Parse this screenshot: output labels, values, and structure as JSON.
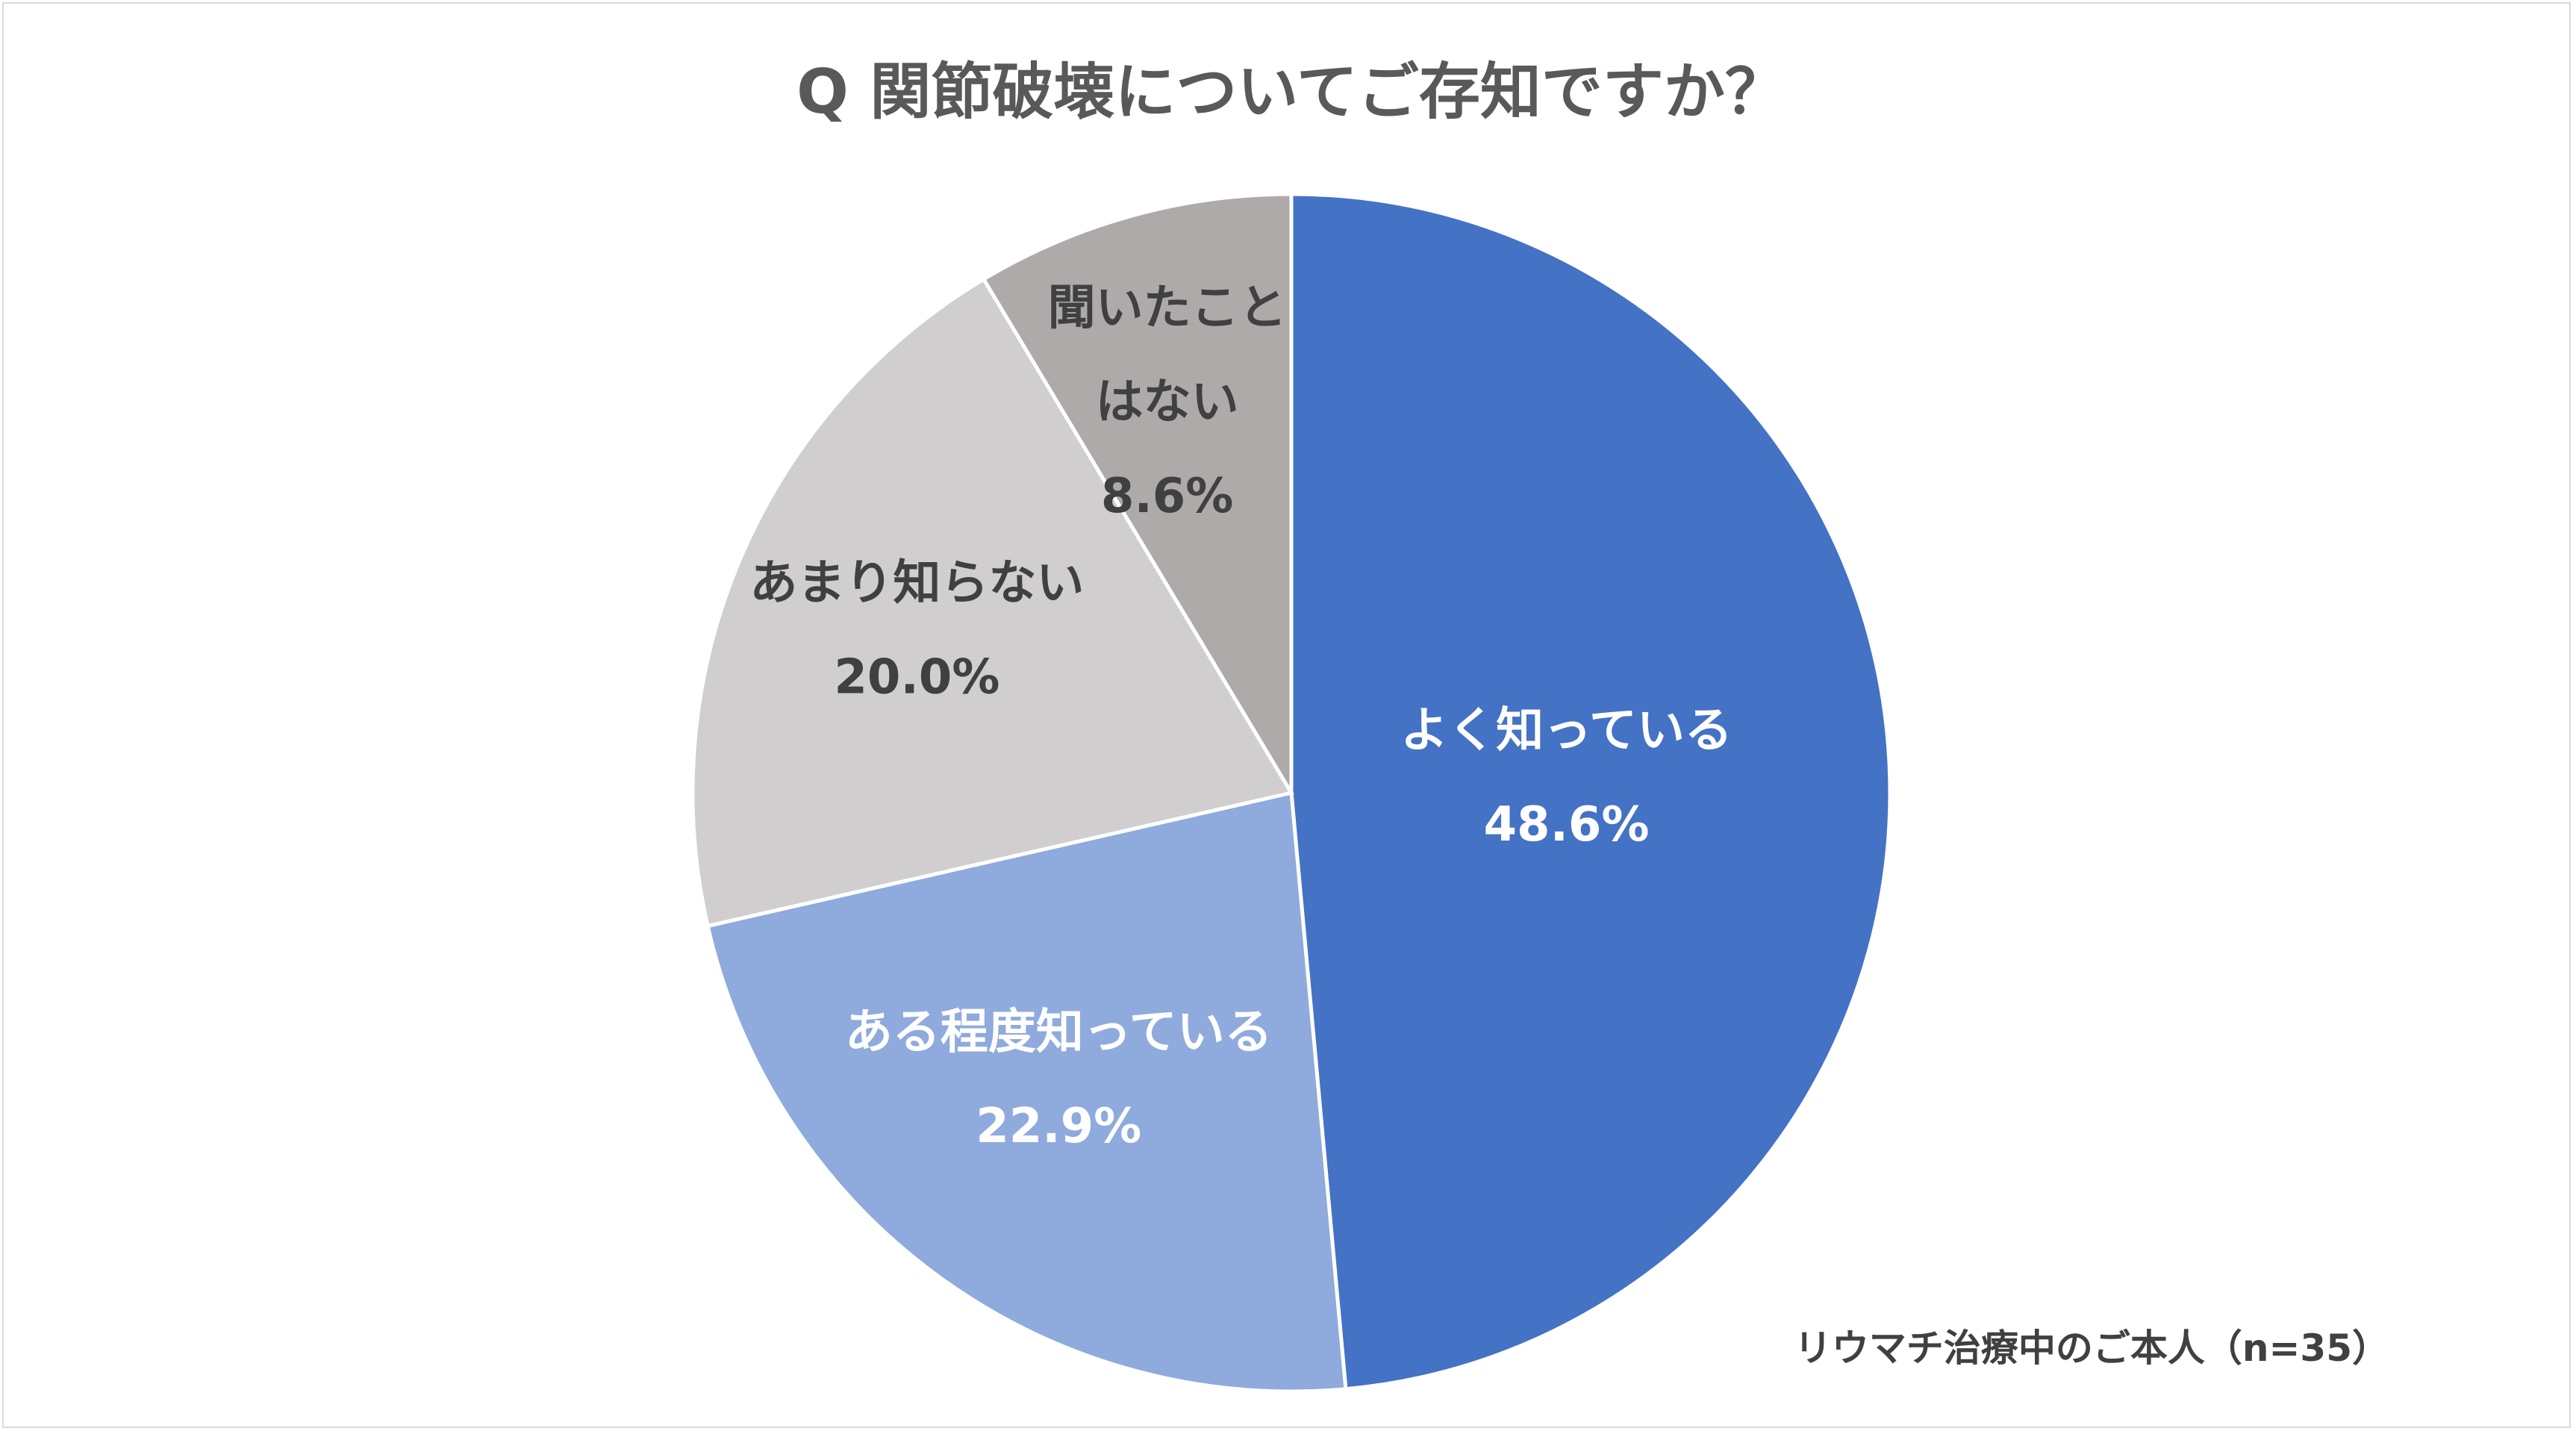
{
  "chart_data": {
    "type": "pie",
    "title": "Q 関節破壊についてご存知ですか？",
    "note": "リウマチ治療中のご本人（n=35）",
    "start_angle_deg": 0,
    "direction": "clockwise",
    "slices": [
      {
        "label_lines": [
          "よく知っている"
        ],
        "value": 48.6,
        "value_label": "48.6%",
        "color": "#4472C4",
        "text_color": "#FFFFFF"
      },
      {
        "label_lines": [
          "ある程度知っている"
        ],
        "value": 22.9,
        "value_label": "22.9%",
        "color": "#8FAADC",
        "text_color": "#FFFFFF"
      },
      {
        "label_lines": [
          "あまり知らない"
        ],
        "value": 20.0,
        "value_label": "20.0%",
        "color": "#D0CECE",
        "text_color": "#404040"
      },
      {
        "label_lines": [
          "聞いたこと",
          "はない"
        ],
        "value": 8.6,
        "value_label": "8.6%",
        "color": "#AEAAAA",
        "text_color": "#404040"
      }
    ]
  }
}
